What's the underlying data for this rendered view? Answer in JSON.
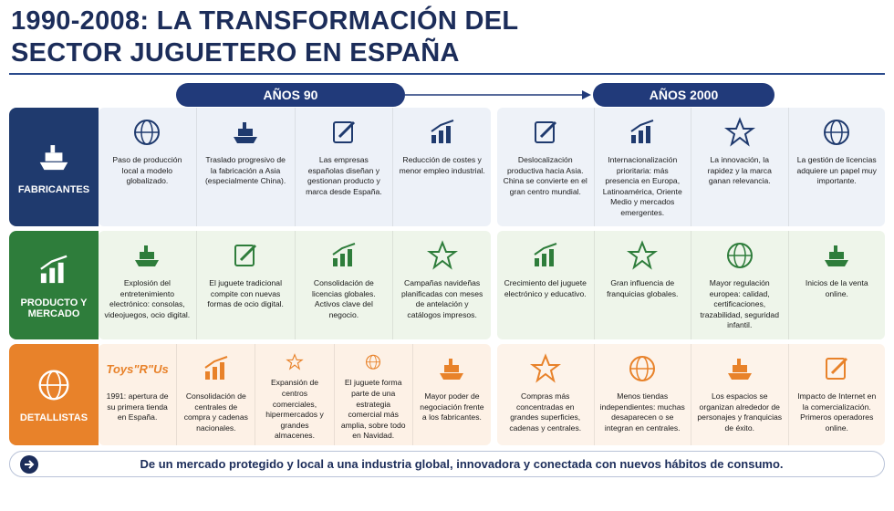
{
  "title": [
    "1990-2008: LA TRANSFORMACIÓN DEL",
    "SECTOR JUGUETERO EN ESPAÑA"
  ],
  "periods": [
    "AÑOS 90",
    "AÑOS 2000"
  ],
  "rows": [
    {
      "label": "FABRICANTES",
      "panels": [
        [
          {
            "text": "Paso de producción local a modelo globalizado."
          },
          {
            "text": "Traslado progresivo de la fabricación a Asia (especialmente China)."
          },
          {
            "text": "Las empresas españolas diseñan y gestionan producto y marca desde España."
          },
          {
            "text": "Reducción de costes y menor empleo industrial."
          }
        ],
        [
          {
            "text": "Deslocalización productiva hacia Asia. China se convierte en el gran centro mundial."
          },
          {
            "text": "Internacionalización prioritaria: más presencia en Europa, Latinoamérica, Oriente Medio y mercados emergentes."
          },
          {
            "text": "La innovación, la rapidez y la marca ganan relevancia."
          },
          {
            "text": "La gestión de licencias adquiere un papel muy importante."
          }
        ]
      ]
    },
    {
      "label": "PRODUCTO Y MERCADO",
      "panels": [
        [
          {
            "text": "Explosión del entretenimiento electrónico: consolas, videojuegos, ocio digital."
          },
          {
            "text": "El juguete tradicional compite con nuevas formas de ocio digital."
          },
          {
            "text": "Consolidación de licencias globales. Activos clave del negocio."
          },
          {
            "text": "Campañas navideñas planificadas con meses de antelación y catálogos impresos."
          }
        ],
        [
          {
            "text": "Crecimiento del juguete electrónico y educativo."
          },
          {
            "text": "Gran influencia de franquicias globales."
          },
          {
            "text": "Mayor regulación europea: calidad, certificaciones, trazabilidad, seguridad infantil."
          },
          {
            "text": "Inicios de la venta online."
          }
        ]
      ]
    },
    {
      "label": "DETALLISTAS",
      "panels": [
        [
          {
            "logo": "Toys\"R\"Us",
            "text": "1991: apertura de su primera tienda en España."
          },
          {
            "text": "Consolidación de centrales de compra y cadenas nacionales."
          },
          {
            "text": "Expansión de centros comerciales, hipermercados y grandes almacenes."
          },
          {
            "text": "El juguete forma parte de una estrategia comercial más amplia, sobre todo en Navidad."
          },
          {
            "text": "Mayor poder de negociación frente a los fabricantes."
          }
        ],
        [
          {
            "text": "Compras más concentradas en grandes superficies, cadenas y centrales."
          },
          {
            "text": "Menos tiendas independientes: muchas desaparecen o se integran en centrales."
          },
          {
            "text": "Los espacios se organizan alrededor de personajes y franquicias de éxito."
          },
          {
            "text": "Impacto de Internet en la comercialización. Primeros operadores online."
          }
        ]
      ]
    }
  ],
  "footer": "De un mercado protegido y local a una industria global, innovadora y conectada con nuevos hábitos de consumo."
}
